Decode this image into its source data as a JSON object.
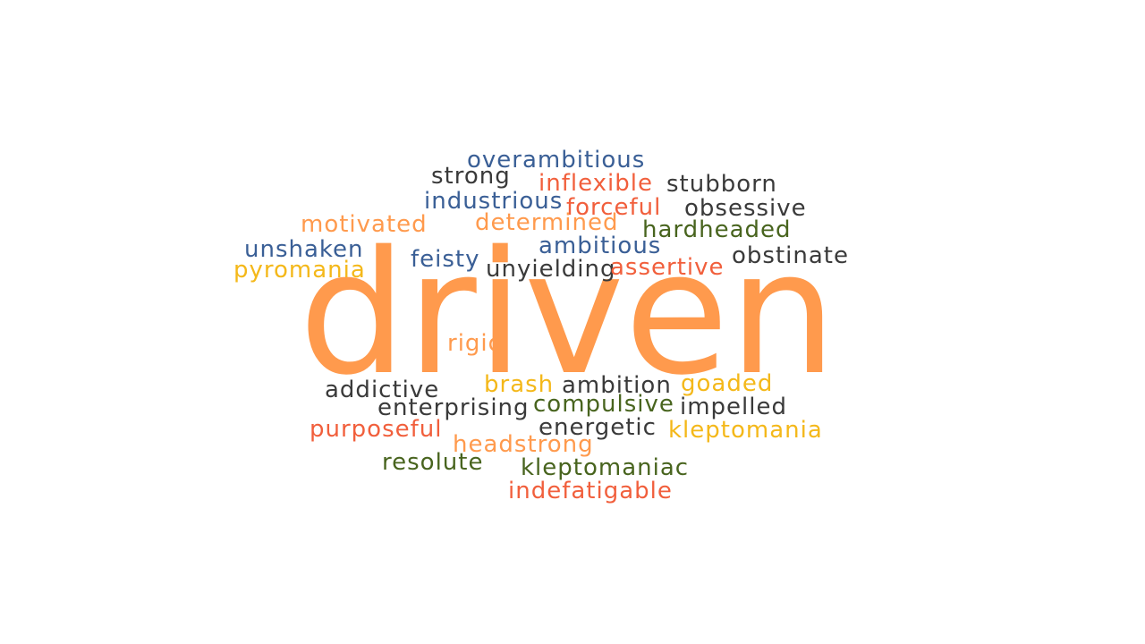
{
  "colors": {
    "orange": "#ff9a4d",
    "red_orange": "#f15f3c",
    "blue": "#3a5f96",
    "dark": "#3a3a3a",
    "yellow": "#f4b81a",
    "green": "#48641e"
  },
  "cloud": {
    "main_word": "driven",
    "words": [
      "overambitious",
      "strong",
      "inflexible",
      "stubborn",
      "industrious",
      "forceful",
      "obsessive",
      "motivated",
      "determined",
      "hardheaded",
      "unshaken",
      "ambitious",
      "feisty",
      "obstinate",
      "pyromania",
      "unyielding",
      "assertive",
      "rigid",
      "addictive",
      "brash",
      "ambition",
      "goaded",
      "enterprising",
      "compulsive",
      "impelled",
      "purposeful",
      "energetic",
      "kleptomania",
      "headstrong",
      "resolute",
      "kleptomaniac",
      "indefatigable"
    ]
  }
}
